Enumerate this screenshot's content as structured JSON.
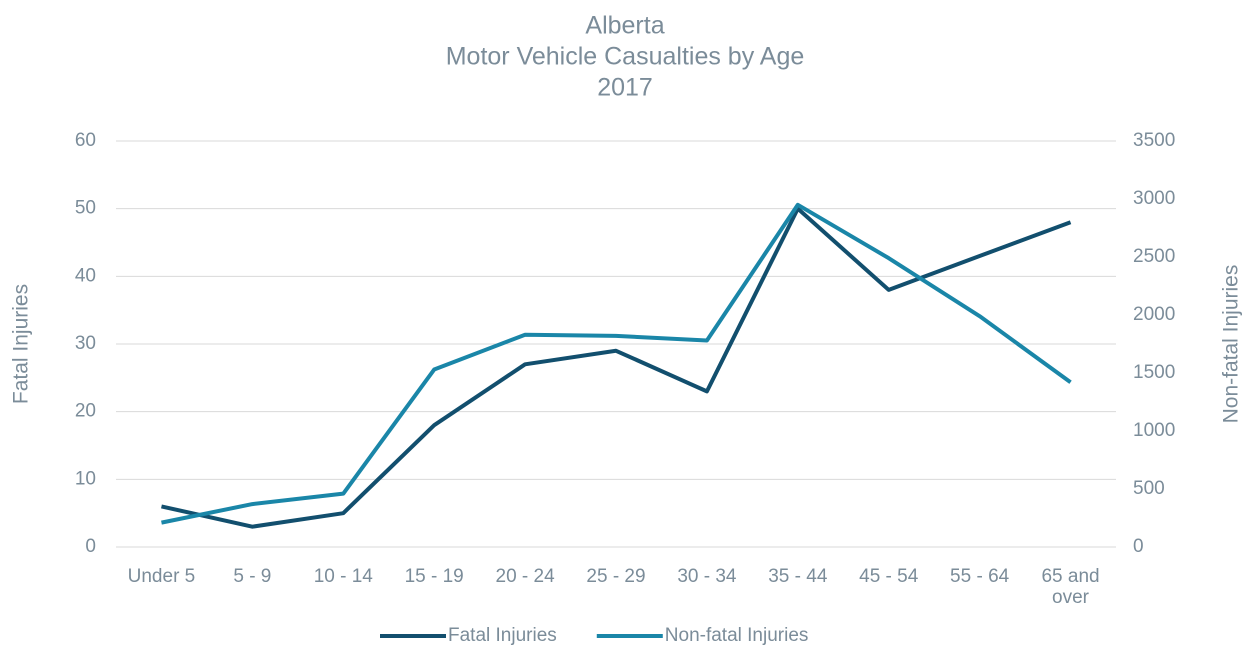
{
  "chart_data": {
    "type": "line",
    "title": [
      "Alberta",
      "Motor Vehicle Casualties by Age",
      "2017"
    ],
    "ylabel": "Fatal Injuries",
    "y2label": "Non-fatal Injuries",
    "categories": [
      "Under 5",
      "5 - 9",
      "10 - 14",
      "15 - 19",
      "20 - 24",
      "25 - 29",
      "30 - 34",
      "35 - 44",
      "45 - 54",
      "55 - 64",
      "65 and over"
    ],
    "series": [
      {
        "name": "Fatal Injuries",
        "color": "#124f6e",
        "values": [
          6,
          3,
          5,
          18,
          27,
          29,
          23,
          50,
          38,
          43,
          48
        ]
      },
      {
        "name": "Non-fatal Injuries",
        "color": "#1a86a8",
        "axis": "y2",
        "values": [
          210,
          370,
          460,
          1530,
          1830,
          1820,
          1780,
          2950,
          2490,
          1990,
          1420
        ]
      }
    ],
    "ylim": [
      0,
      60
    ],
    "yticks": [
      0,
      10,
      20,
      30,
      40,
      50,
      60
    ],
    "y2lim": [
      0,
      3500
    ],
    "y2ticks": [
      0,
      500,
      1000,
      1500,
      2000,
      2500,
      3000,
      3500
    ],
    "grid": true,
    "legend": "bottom"
  }
}
